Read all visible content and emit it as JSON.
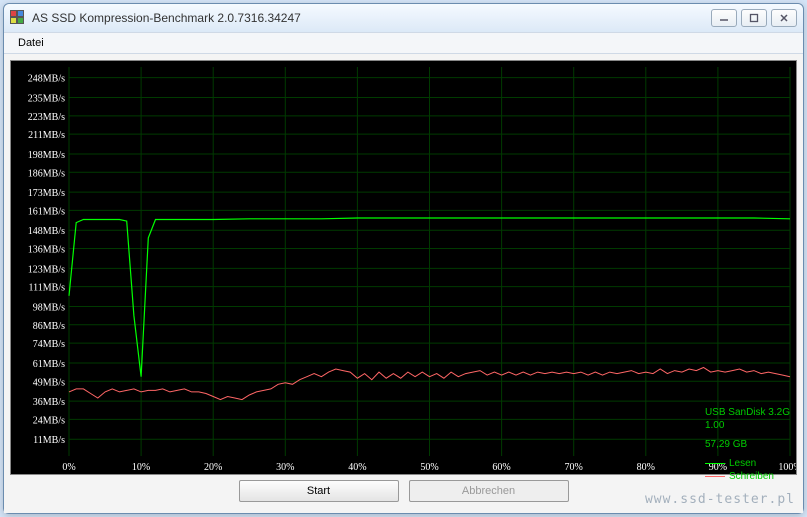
{
  "window": {
    "title": "AS SSD Kompression-Benchmark 2.0.7316.34247"
  },
  "menu": {
    "datei": "Datei"
  },
  "chart": {
    "type": "line",
    "background_color": "#000000",
    "grid_color": "#003a00",
    "axis_text_color": "#ffffff",
    "axis_font_size": 10,
    "y_axis": {
      "ticks": [
        11,
        24,
        36,
        49,
        61,
        74,
        86,
        98,
        111,
        123,
        136,
        148,
        161,
        173,
        186,
        198,
        211,
        223,
        235,
        248
      ],
      "unit": "MB/s",
      "min": 0,
      "max": 255
    },
    "x_axis": {
      "ticks": [
        0,
        10,
        20,
        30,
        40,
        50,
        60,
        70,
        80,
        90,
        100
      ],
      "unit": "%",
      "min": 0,
      "max": 100
    },
    "series": {
      "lesen": {
        "label": "Lesen",
        "color": "#00ff00",
        "line_width": 1.2,
        "points": [
          [
            0,
            105
          ],
          [
            1,
            153
          ],
          [
            2,
            155
          ],
          [
            3,
            155
          ],
          [
            4,
            155
          ],
          [
            5,
            155
          ],
          [
            6,
            155
          ],
          [
            7,
            155
          ],
          [
            8,
            154
          ],
          [
            9,
            92
          ],
          [
            10,
            52
          ],
          [
            11,
            143
          ],
          [
            12,
            155
          ],
          [
            13,
            155
          ],
          [
            14,
            155
          ],
          [
            15,
            155
          ],
          [
            16,
            155
          ],
          [
            18,
            155
          ],
          [
            20,
            155
          ],
          [
            25,
            155.5
          ],
          [
            30,
            155.5
          ],
          [
            35,
            155.5
          ],
          [
            40,
            156
          ],
          [
            45,
            156
          ],
          [
            50,
            156
          ],
          [
            55,
            156
          ],
          [
            60,
            156
          ],
          [
            65,
            156
          ],
          [
            70,
            156
          ],
          [
            75,
            156
          ],
          [
            80,
            156
          ],
          [
            85,
            156
          ],
          [
            90,
            156
          ],
          [
            95,
            156
          ],
          [
            100,
            155.5
          ]
        ]
      },
      "schreiben": {
        "label": "Schreiben",
        "color": "#ff6666",
        "line_width": 1.0,
        "points": [
          [
            0,
            42
          ],
          [
            1,
            44
          ],
          [
            2,
            44
          ],
          [
            3,
            41
          ],
          [
            4,
            38
          ],
          [
            5,
            42
          ],
          [
            6,
            44
          ],
          [
            7,
            42
          ],
          [
            8,
            43
          ],
          [
            9,
            44
          ],
          [
            10,
            42
          ],
          [
            11,
            43
          ],
          [
            12,
            43
          ],
          [
            13,
            44
          ],
          [
            14,
            42
          ],
          [
            15,
            43
          ],
          [
            16,
            44
          ],
          [
            17,
            42
          ],
          [
            18,
            42
          ],
          [
            19,
            41
          ],
          [
            20,
            39
          ],
          [
            21,
            37
          ],
          [
            22,
            39
          ],
          [
            23,
            38
          ],
          [
            24,
            37
          ],
          [
            25,
            40
          ],
          [
            26,
            42
          ],
          [
            27,
            43
          ],
          [
            28,
            44
          ],
          [
            29,
            47
          ],
          [
            30,
            48
          ],
          [
            31,
            47
          ],
          [
            32,
            50
          ],
          [
            33,
            52
          ],
          [
            34,
            54
          ],
          [
            35,
            52
          ],
          [
            36,
            55
          ],
          [
            37,
            57
          ],
          [
            38,
            56
          ],
          [
            39,
            55
          ],
          [
            40,
            51
          ],
          [
            41,
            54
          ],
          [
            42,
            50
          ],
          [
            43,
            55
          ],
          [
            44,
            51
          ],
          [
            45,
            54
          ],
          [
            46,
            51
          ],
          [
            47,
            55
          ],
          [
            48,
            52
          ],
          [
            49,
            55
          ],
          [
            50,
            52
          ],
          [
            51,
            54
          ],
          [
            52,
            51
          ],
          [
            53,
            55
          ],
          [
            54,
            52
          ],
          [
            55,
            54
          ],
          [
            56,
            55
          ],
          [
            57,
            56
          ],
          [
            58,
            53
          ],
          [
            59,
            55
          ],
          [
            60,
            53
          ],
          [
            61,
            55
          ],
          [
            62,
            53
          ],
          [
            63,
            55
          ],
          [
            64,
            53
          ],
          [
            65,
            55
          ],
          [
            66,
            54
          ],
          [
            67,
            55
          ],
          [
            68,
            54
          ],
          [
            69,
            55
          ],
          [
            70,
            54
          ],
          [
            71,
            55
          ],
          [
            72,
            53
          ],
          [
            73,
            55
          ],
          [
            74,
            53
          ],
          [
            75,
            55
          ],
          [
            76,
            54
          ],
          [
            77,
            55
          ],
          [
            78,
            56
          ],
          [
            79,
            54
          ],
          [
            80,
            55
          ],
          [
            81,
            54
          ],
          [
            82,
            57
          ],
          [
            83,
            54
          ],
          [
            84,
            56
          ],
          [
            85,
            55
          ],
          [
            86,
            57
          ],
          [
            87,
            56
          ],
          [
            88,
            58
          ],
          [
            89,
            55
          ],
          [
            90,
            56
          ],
          [
            91,
            55
          ],
          [
            92,
            56
          ],
          [
            93,
            57
          ],
          [
            94,
            55
          ],
          [
            95,
            56
          ],
          [
            96,
            54
          ],
          [
            97,
            55
          ],
          [
            98,
            54
          ],
          [
            99,
            53
          ],
          [
            100,
            52
          ]
        ]
      }
    },
    "device_info": {
      "line1": "USB   SanDisk 3.2G",
      "line2": "1.00",
      "line3": "57,29 GB"
    }
  },
  "buttons": {
    "start": "Start",
    "abort": "Abbrechen"
  },
  "watermark": "www.ssd-tester.pl"
}
